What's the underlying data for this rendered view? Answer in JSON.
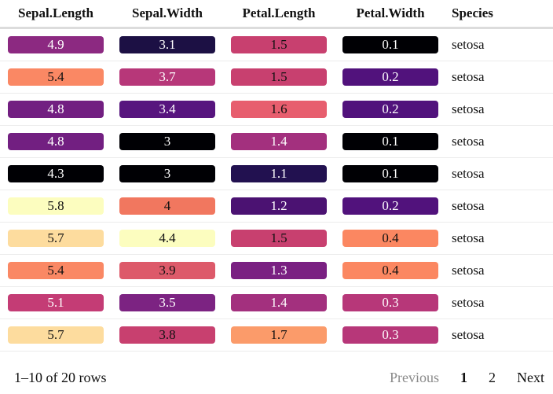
{
  "table": {
    "columns": [
      "Sepal.Length",
      "Sepal.Width",
      "Petal.Length",
      "Petal.Width",
      "Species"
    ],
    "rows": [
      {
        "cells": [
          {
            "v": "4.9",
            "bg": "#8c2981",
            "fg": "#ffffff"
          },
          {
            "v": "3.1",
            "bg": "#1c1044",
            "fg": "#ffffff"
          },
          {
            "v": "1.5",
            "bg": "#c8406f",
            "fg": "#111111"
          },
          {
            "v": "0.1",
            "bg": "#000004",
            "fg": "#ffffff"
          }
        ],
        "species": "setosa"
      },
      {
        "cells": [
          {
            "v": "5.4",
            "bg": "#fa8864",
            "fg": "#111111"
          },
          {
            "v": "3.7",
            "bg": "#b73779",
            "fg": "#ffffff"
          },
          {
            "v": "1.5",
            "bg": "#c8406f",
            "fg": "#111111"
          },
          {
            "v": "0.2",
            "bg": "#51127c",
            "fg": "#ffffff"
          }
        ],
        "species": "setosa"
      },
      {
        "cells": [
          {
            "v": "4.8",
            "bg": "#721f81",
            "fg": "#ffffff"
          },
          {
            "v": "3.4",
            "bg": "#57157e",
            "fg": "#ffffff"
          },
          {
            "v": "1.6",
            "bg": "#e75e6e",
            "fg": "#111111"
          },
          {
            "v": "0.2",
            "bg": "#51127c",
            "fg": "#ffffff"
          }
        ],
        "species": "setosa"
      },
      {
        "cells": [
          {
            "v": "4.8",
            "bg": "#721f81",
            "fg": "#ffffff"
          },
          {
            "v": "3",
            "bg": "#000004",
            "fg": "#ffffff"
          },
          {
            "v": "1.4",
            "bg": "#a3307e",
            "fg": "#ffffff"
          },
          {
            "v": "0.1",
            "bg": "#000004",
            "fg": "#ffffff"
          }
        ],
        "species": "setosa"
      },
      {
        "cells": [
          {
            "v": "4.3",
            "bg": "#000004",
            "fg": "#ffffff"
          },
          {
            "v": "3",
            "bg": "#000004",
            "fg": "#ffffff"
          },
          {
            "v": "1.1",
            "bg": "#221150",
            "fg": "#ffffff"
          },
          {
            "v": "0.1",
            "bg": "#000004",
            "fg": "#ffffff"
          }
        ],
        "species": "setosa"
      },
      {
        "cells": [
          {
            "v": "5.8",
            "bg": "#fcfdbf",
            "fg": "#111111"
          },
          {
            "v": "4",
            "bg": "#f1775f",
            "fg": "#111111"
          },
          {
            "v": "1.2",
            "bg": "#4b1272",
            "fg": "#ffffff"
          },
          {
            "v": "0.2",
            "bg": "#51127c",
            "fg": "#ffffff"
          }
        ],
        "species": "setosa"
      },
      {
        "cells": [
          {
            "v": "5.7",
            "bg": "#fddc9e",
            "fg": "#111111"
          },
          {
            "v": "4.4",
            "bg": "#fcfdbf",
            "fg": "#111111"
          },
          {
            "v": "1.5",
            "bg": "#c8406f",
            "fg": "#111111"
          },
          {
            "v": "0.4",
            "bg": "#fb8761",
            "fg": "#111111"
          }
        ],
        "species": "setosa"
      },
      {
        "cells": [
          {
            "v": "5.4",
            "bg": "#fa8864",
            "fg": "#111111"
          },
          {
            "v": "3.9",
            "bg": "#dd5a6a",
            "fg": "#111111"
          },
          {
            "v": "1.3",
            "bg": "#7a2082",
            "fg": "#ffffff"
          },
          {
            "v": "0.4",
            "bg": "#fb8761",
            "fg": "#111111"
          }
        ],
        "species": "setosa"
      },
      {
        "cells": [
          {
            "v": "5.1",
            "bg": "#c43c75",
            "fg": "#ffffff"
          },
          {
            "v": "3.5",
            "bg": "#7c2382",
            "fg": "#ffffff"
          },
          {
            "v": "1.4",
            "bg": "#a3307e",
            "fg": "#ffffff"
          },
          {
            "v": "0.3",
            "bg": "#b73779",
            "fg": "#ffffff"
          }
        ],
        "species": "setosa"
      },
      {
        "cells": [
          {
            "v": "5.7",
            "bg": "#fddc9e",
            "fg": "#111111"
          },
          {
            "v": "3.8",
            "bg": "#c8406f",
            "fg": "#111111"
          },
          {
            "v": "1.7",
            "bg": "#fb9b6a",
            "fg": "#111111"
          },
          {
            "v": "0.3",
            "bg": "#b73779",
            "fg": "#ffffff"
          }
        ],
        "species": "setosa"
      }
    ]
  },
  "footer": {
    "row_info": "1–10 of 20 rows",
    "prev_label": "Previous",
    "pages": [
      "1",
      "2"
    ],
    "current_page": "1",
    "next_label": "Next"
  }
}
